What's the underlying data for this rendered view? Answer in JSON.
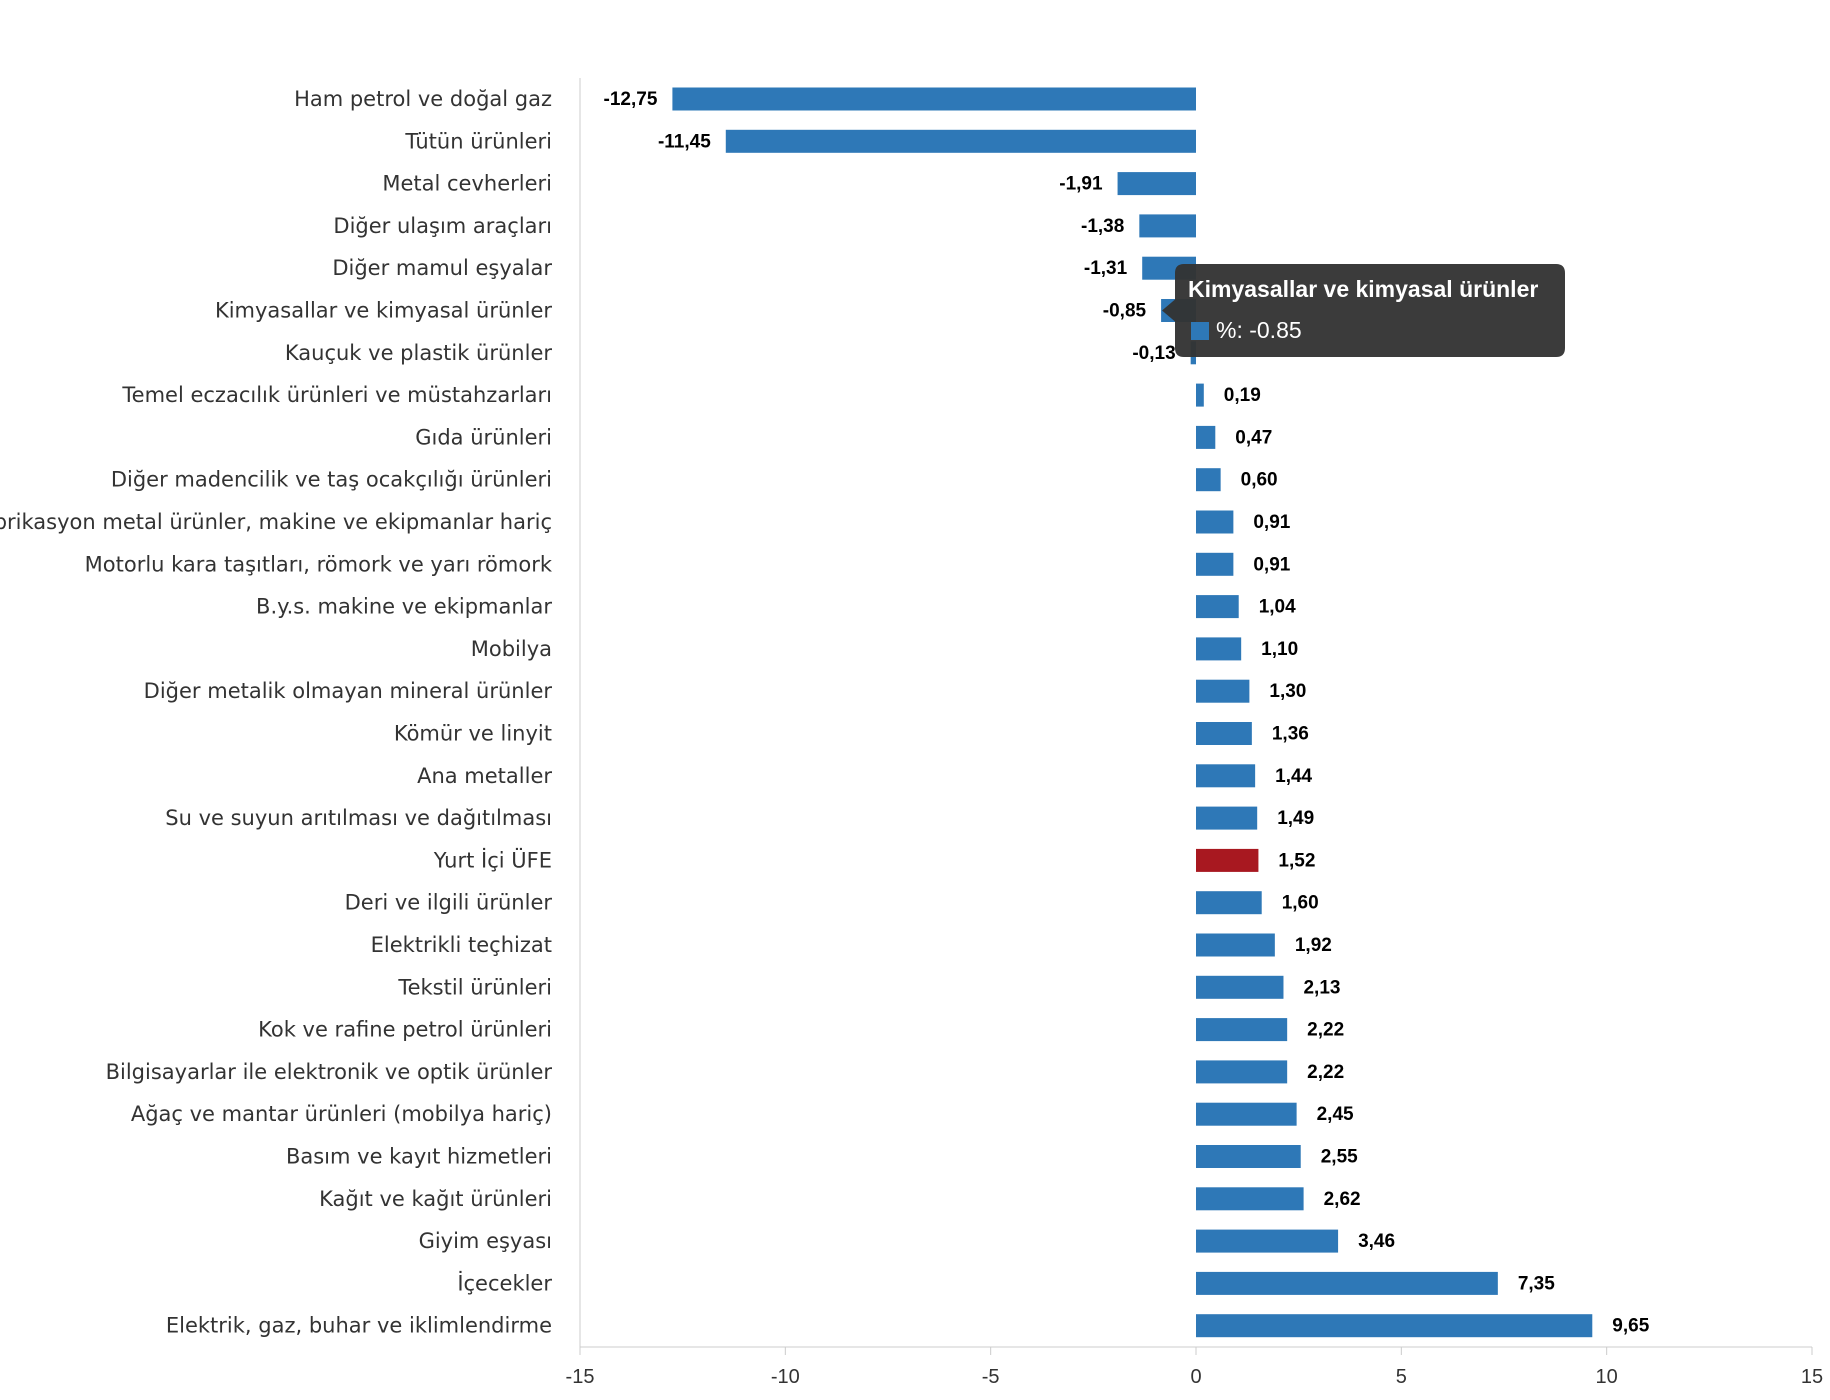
{
  "chart_data": {
    "type": "bar",
    "orientation": "horizontal",
    "title": "",
    "xlabel": "",
    "ylabel": "",
    "xlim": [
      -15,
      15
    ],
    "x_ticks": [
      "-15",
      "-10",
      "-5",
      "0",
      "5",
      "10",
      "15"
    ],
    "grid": false,
    "legend": "none",
    "colors": {
      "default": "#2e78b7",
      "highlight": "#a81820"
    },
    "series": [
      {
        "name": "%",
        "data": [
          {
            "category": "Ham petrol ve doğal gaz",
            "value": -12.75,
            "label": "-12,75"
          },
          {
            "category": "Tütün ürünleri",
            "value": -11.45,
            "label": "-11,45"
          },
          {
            "category": "Metal cevherleri",
            "value": -1.91,
            "label": "-1,91"
          },
          {
            "category": "Diğer ulaşım araçları",
            "value": -1.38,
            "label": "-1,38"
          },
          {
            "category": "Diğer mamul eşyalar",
            "value": -1.31,
            "label": "-1,31"
          },
          {
            "category": "Kimyasallar ve kimyasal ürünler",
            "value": -0.85,
            "label": "-0,85"
          },
          {
            "category": "Kauçuk ve plastik ürünler",
            "value": -0.13,
            "label": "-0,13"
          },
          {
            "category": "Temel eczacılık ürünleri ve müstahzarları",
            "value": 0.19,
            "label": "0,19"
          },
          {
            "category": "Gıda ürünleri",
            "value": 0.47,
            "label": "0,47"
          },
          {
            "category": "Diğer madencilik ve taş ocakçılığı ürünleri",
            "value": 0.6,
            "label": "0,60"
          },
          {
            "category": "Fabrikasyon metal ürünler, makine ve ekipmanlar hariç",
            "value": 0.91,
            "label": "0,91"
          },
          {
            "category": "Motorlu kara taşıtları, römork ve yarı römork",
            "value": 0.91,
            "label": "0,91"
          },
          {
            "category": "B.y.s. makine ve ekipmanlar",
            "value": 1.04,
            "label": "1,04"
          },
          {
            "category": "Mobilya",
            "value": 1.1,
            "label": "1,10"
          },
          {
            "category": "Diğer metalik olmayan mineral ürünler",
            "value": 1.3,
            "label": "1,30"
          },
          {
            "category": "Kömür ve linyit",
            "value": 1.36,
            "label": "1,36"
          },
          {
            "category": "Ana metaller",
            "value": 1.44,
            "label": "1,44"
          },
          {
            "category": "Su ve suyun arıtılması ve dağıtılması",
            "value": 1.49,
            "label": "1,49"
          },
          {
            "category": "Yurt İçi ÜFE",
            "value": 1.52,
            "label": "1,52",
            "highlight": true
          },
          {
            "category": "Deri ve ilgili ürünler",
            "value": 1.6,
            "label": "1,60"
          },
          {
            "category": "Elektrikli teçhizat",
            "value": 1.92,
            "label": "1,92"
          },
          {
            "category": "Tekstil ürünleri",
            "value": 2.13,
            "label": "2,13"
          },
          {
            "category": "Kok ve rafine petrol ürünleri",
            "value": 2.22,
            "label": "2,22"
          },
          {
            "category": "Bilgisayarlar ile elektronik ve optik ürünler",
            "value": 2.22,
            "label": "2,22"
          },
          {
            "category": "Ağaç ve mantar ürünleri (mobilya hariç)",
            "value": 2.45,
            "label": "2,45"
          },
          {
            "category": "Basım ve kayıt hizmetleri",
            "value": 2.55,
            "label": "2,55"
          },
          {
            "category": "Kağıt ve kağıt ürünleri",
            "value": 2.62,
            "label": "2,62"
          },
          {
            "category": "Giyim eşyası",
            "value": 3.46,
            "label": "3,46"
          },
          {
            "category": "İçecekler",
            "value": 7.35,
            "label": "7,35"
          },
          {
            "category": "Elektrik, gaz, buhar ve iklimlendirme",
            "value": 9.65,
            "label": "9,65"
          }
        ]
      }
    ],
    "tooltip": {
      "category_index": 5,
      "title": "Kimyasallar ve kimyasal ürünler",
      "text": "%: -0.85"
    }
  }
}
